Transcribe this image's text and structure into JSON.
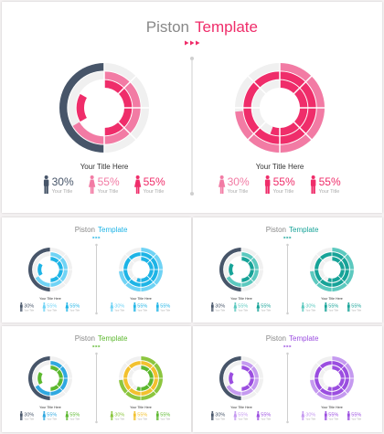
{
  "slides": [
    {
      "title_word": "Piston",
      "accent_word": "Template",
      "accent_color": "#ef2d6a",
      "accent_light": "#f27ba4",
      "chart_heading": "Your Title Here",
      "left_stats": [
        {
          "value": "30%",
          "label": "Your Title",
          "icon": "male-person-icon",
          "color": "#475569"
        },
        {
          "value": "55%",
          "label": "Your Title",
          "icon": "female-person-icon",
          "color": "#f27ba4"
        },
        {
          "value": "55%",
          "label": "Your Title",
          "icon": "female-person-icon",
          "color": "#ef2d6a"
        }
      ],
      "right_stats": [
        {
          "value": "30%",
          "label": "Your Title",
          "icon": "female-person-icon",
          "color": "#f27ba4"
        },
        {
          "value": "55%",
          "label": "Your Title",
          "icon": "male-person-icon",
          "color": "#ef2d6a"
        },
        {
          "value": "55%",
          "label": "Your Title",
          "icon": "male-person-icon",
          "color": "#ef2d6a"
        }
      ]
    },
    {
      "title_word": "Piston",
      "accent_word": "Template",
      "accent_color": "#1eb4e6",
      "accent_light": "#6fd3f5",
      "chart_heading": "Your Title Here",
      "left_stats": [
        {
          "value": "30%",
          "label": "Your Title",
          "icon": "male-person-icon",
          "color": "#475569"
        },
        {
          "value": "55%",
          "label": "Your Title",
          "icon": "female-person-icon",
          "color": "#6fd3f5"
        },
        {
          "value": "55%",
          "label": "Your Title",
          "icon": "female-person-icon",
          "color": "#1eb4e6"
        }
      ],
      "right_stats": [
        {
          "value": "30%",
          "label": "Your Title",
          "icon": "female-person-icon",
          "color": "#6fd3f5"
        },
        {
          "value": "55%",
          "label": "Your Title",
          "icon": "male-person-icon",
          "color": "#1eb4e6"
        },
        {
          "value": "55%",
          "label": "Your Title",
          "icon": "male-person-icon",
          "color": "#1eb4e6"
        }
      ]
    },
    {
      "title_word": "Piston",
      "accent_word": "Template",
      "accent_color": "#17a398",
      "accent_light": "#5cc9bf",
      "chart_heading": "Your Title Here",
      "left_stats": [
        {
          "value": "30%",
          "label": "Your Title",
          "icon": "male-person-icon",
          "color": "#475569"
        },
        {
          "value": "55%",
          "label": "Your Title",
          "icon": "female-person-icon",
          "color": "#5cc9bf"
        },
        {
          "value": "55%",
          "label": "Your Title",
          "icon": "female-person-icon",
          "color": "#17a398"
        }
      ],
      "right_stats": [
        {
          "value": "30%",
          "label": "Your Title",
          "icon": "female-person-icon",
          "color": "#5cc9bf"
        },
        {
          "value": "55%",
          "label": "Your Title",
          "icon": "male-person-icon",
          "color": "#17a398"
        },
        {
          "value": "55%",
          "label": "Your Title",
          "icon": "male-person-icon",
          "color": "#17a398"
        }
      ]
    },
    {
      "title_word": "Piston",
      "accent_word": "Template",
      "accent_color": "#5cb82e",
      "accent_light": "#2fa8e0",
      "chart_heading": "Your Title Here",
      "left_stats": [
        {
          "value": "30%",
          "label": "Your Title",
          "icon": "male-person-icon",
          "color": "#475569"
        },
        {
          "value": "55%",
          "label": "Your Title",
          "icon": "female-person-icon",
          "color": "#2fa8e0"
        },
        {
          "value": "55%",
          "label": "Your Title",
          "icon": "female-person-icon",
          "color": "#5cb82e"
        }
      ],
      "right_stats": [
        {
          "value": "30%",
          "label": "Your Title",
          "icon": "female-person-icon",
          "color": "#8cc63f"
        },
        {
          "value": "55%",
          "label": "Your Title",
          "icon": "male-person-icon",
          "color": "#f2c12e"
        },
        {
          "value": "55%",
          "label": "Your Title",
          "icon": "male-person-icon",
          "color": "#5cb82e"
        }
      ]
    },
    {
      "title_word": "Piston",
      "accent_word": "Template",
      "accent_color": "#9b4ee0",
      "accent_light": "#c59af0",
      "chart_heading": "Your Title Here",
      "left_stats": [
        {
          "value": "30%",
          "label": "Your Title",
          "icon": "male-person-icon",
          "color": "#475569"
        },
        {
          "value": "55%",
          "label": "Your Title",
          "icon": "female-person-icon",
          "color": "#c59af0"
        },
        {
          "value": "55%",
          "label": "Your Title",
          "icon": "female-person-icon",
          "color": "#9b4ee0"
        }
      ],
      "right_stats": [
        {
          "value": "30%",
          "label": "Your Title",
          "icon": "female-person-icon",
          "color": "#c59af0"
        },
        {
          "value": "55%",
          "label": "Your Title",
          "icon": "male-person-icon",
          "color": "#9b4ee0"
        },
        {
          "value": "55%",
          "label": "Your Title",
          "icon": "male-person-icon",
          "color": "#9b4ee0"
        }
      ]
    }
  ],
  "colors": {
    "dark": "#475569",
    "track": "#f0f0f0",
    "title_gray": "#888888",
    "label_gray": "#aaaaaa",
    "separator": "#cfcfcf"
  }
}
